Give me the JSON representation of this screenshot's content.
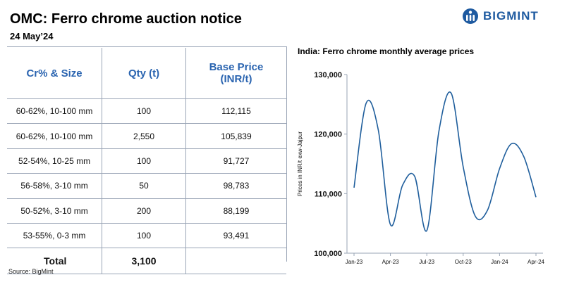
{
  "header": {
    "title": "OMC: Ferro chrome auction notice",
    "date": "24 May’24",
    "brand": "BIGMINT"
  },
  "table": {
    "columns": [
      "Cr% & Size",
      "Qty (t)",
      "Base Price\n(INR/t)"
    ],
    "rows": [
      [
        "60-62%, 10-100 mm",
        "100",
        "112,115"
      ],
      [
        "60-62%, 10-100 mm",
        "2,550",
        "105,839"
      ],
      [
        "52-54%, 10-25 mm",
        "100",
        "91,727"
      ],
      [
        "56-58%, 3-10 mm",
        "50",
        "98,783"
      ],
      [
        "50-52%, 3-10 mm",
        "200",
        "88,199"
      ],
      [
        "53-55%, 0-3 mm",
        "100",
        "93,491"
      ]
    ],
    "total": {
      "label": "Total",
      "qty": "3,100",
      "price": ""
    }
  },
  "source": "Source: BigMint",
  "chart_data": {
    "type": "line",
    "title": "India: Ferro chrome monthly average prices",
    "xlabel": "",
    "ylabel": "Prices in INR/t exw-Jajpur",
    "x": [
      "Jan-23",
      "Feb-23",
      "Mar-23",
      "Apr-23",
      "May-23",
      "Jun-23",
      "Jul-23",
      "Aug-23",
      "Sep-23",
      "Oct-23",
      "Nov-23",
      "Dec-23",
      "Jan-24",
      "Feb-24",
      "Mar-24",
      "Apr-24"
    ],
    "x_tick_labels": [
      "Jan-23",
      "Apr-23",
      "Jul-23",
      "Oct-23",
      "Jan-24",
      "Apr-24"
    ],
    "series": [
      {
        "values": [
          111000,
          125200,
          120700,
          104800,
          111400,
          112900,
          103800,
          120500,
          126900,
          114500,
          106200,
          107200,
          114200,
          118400,
          116200,
          109400
        ]
      }
    ],
    "ylim": [
      100000,
      130000
    ],
    "y_ticks": [
      100000,
      110000,
      120000,
      130000
    ],
    "y_tick_labels": [
      "100,000",
      "110,000",
      "120,000",
      "130,000"
    ],
    "grid": false,
    "legend": "none",
    "colors": {
      "line": "#1f5e9c",
      "header": "#2a64b0",
      "axis": "#9aa5b6"
    }
  }
}
